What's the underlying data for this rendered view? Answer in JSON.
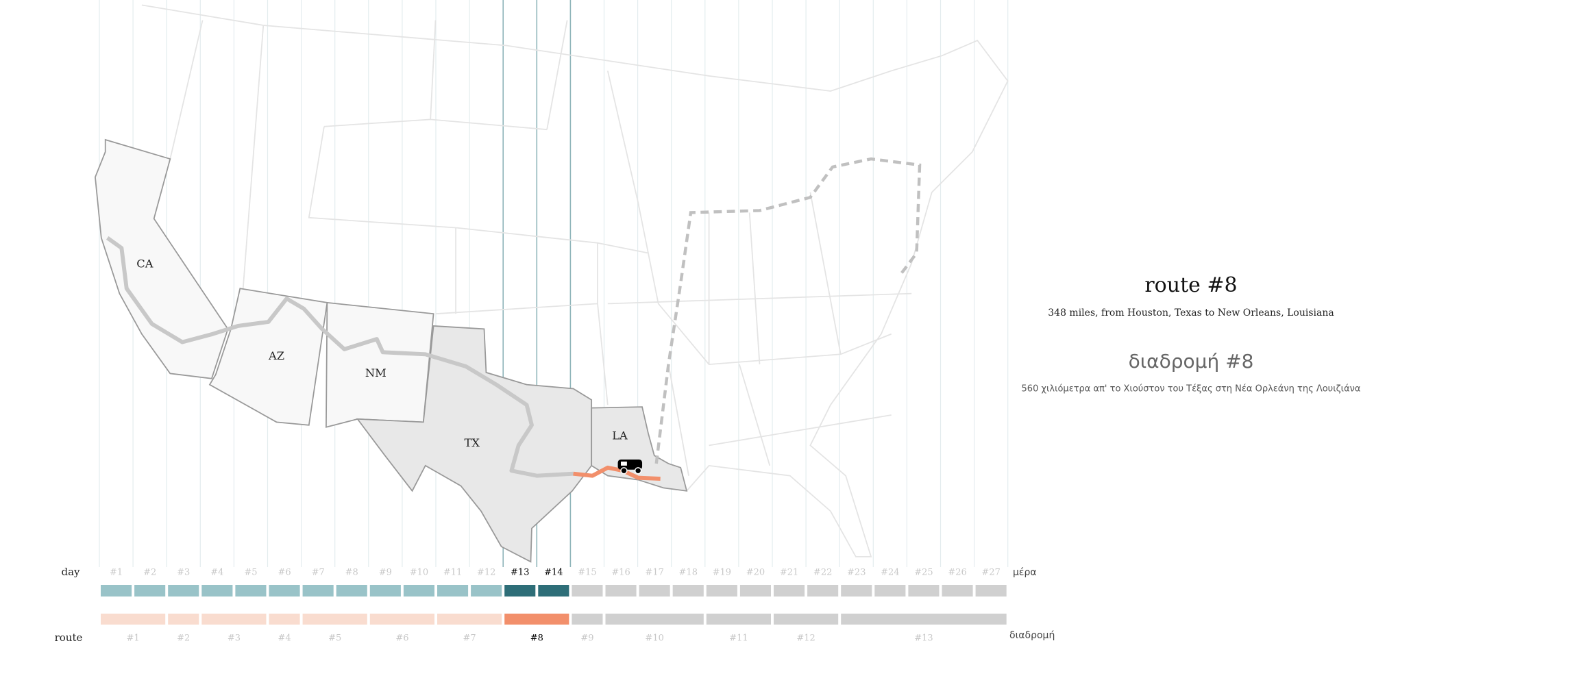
{
  "map": {
    "states": [
      "CA",
      "AZ",
      "NM",
      "TX",
      "LA"
    ]
  },
  "info": {
    "title": "route #8",
    "description": "348 miles, from Houston, Texas to New Orleans, Louisiana",
    "title_alt": "διαδρομή #8",
    "description_alt": "560 χιλιόμετρα απ' το Χιούστον του Τέξας στη Νέα Ορλεάνη της Λουιζιάνα"
  },
  "timeline": {
    "day_label": "day",
    "day_label_alt": "μέρα",
    "route_label": "route",
    "route_label_alt": "διαδρομή",
    "colors": {
      "day": {
        "done": "#99c3c8",
        "active": "#2e6e78",
        "future": "#d0d0d0"
      },
      "route": {
        "done": "#f9dccf",
        "active": "#f28f6b",
        "future": "#d0d0d0"
      },
      "text": {
        "done": "#c8c8c8",
        "active": "#000000",
        "future": "#c8c8c8"
      }
    },
    "days": [
      {
        "label": "#1",
        "status": "done"
      },
      {
        "label": "#2",
        "status": "done"
      },
      {
        "label": "#3",
        "status": "done"
      },
      {
        "label": "#4",
        "status": "done"
      },
      {
        "label": "#5",
        "status": "done"
      },
      {
        "label": "#6",
        "status": "done"
      },
      {
        "label": "#7",
        "status": "done"
      },
      {
        "label": "#8",
        "status": "done"
      },
      {
        "label": "#9",
        "status": "done"
      },
      {
        "label": "#10",
        "status": "done"
      },
      {
        "label": "#11",
        "status": "done"
      },
      {
        "label": "#12",
        "status": "done"
      },
      {
        "label": "#13",
        "status": "active"
      },
      {
        "label": "#14",
        "status": "active"
      },
      {
        "label": "#15",
        "status": "future"
      },
      {
        "label": "#16",
        "status": "future"
      },
      {
        "label": "#17",
        "status": "future"
      },
      {
        "label": "#18",
        "status": "future"
      },
      {
        "label": "#19",
        "status": "future"
      },
      {
        "label": "#20",
        "status": "future"
      },
      {
        "label": "#21",
        "status": "future"
      },
      {
        "label": "#22",
        "status": "future"
      },
      {
        "label": "#23",
        "status": "future"
      },
      {
        "label": "#24",
        "status": "future"
      },
      {
        "label": "#25",
        "status": "future"
      },
      {
        "label": "#26",
        "status": "future"
      },
      {
        "label": "#27",
        "status": "future"
      }
    ],
    "routes": [
      {
        "label": "#1",
        "days": 2,
        "status": "done"
      },
      {
        "label": "#2",
        "days": 1,
        "status": "done"
      },
      {
        "label": "#3",
        "days": 2,
        "status": "done"
      },
      {
        "label": "#4",
        "days": 1,
        "status": "done"
      },
      {
        "label": "#5",
        "days": 2,
        "status": "done"
      },
      {
        "label": "#6",
        "days": 2,
        "status": "done"
      },
      {
        "label": "#7",
        "days": 2,
        "status": "done"
      },
      {
        "label": "#8",
        "days": 2,
        "status": "active"
      },
      {
        "label": "#9",
        "days": 1,
        "status": "future"
      },
      {
        "label": "#10",
        "days": 3,
        "status": "future"
      },
      {
        "label": "#11",
        "days": 2,
        "status": "future"
      },
      {
        "label": "#12",
        "days": 2,
        "status": "future"
      },
      {
        "label": "#13",
        "days": 5,
        "status": "future"
      }
    ]
  }
}
